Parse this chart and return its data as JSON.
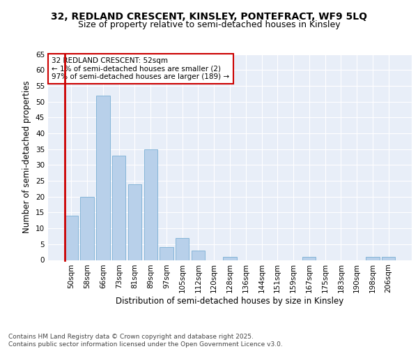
{
  "title_line1": "32, REDLAND CRESCENT, KINSLEY, PONTEFRACT, WF9 5LQ",
  "title_line2": "Size of property relative to semi-detached houses in Kinsley",
  "xlabel": "Distribution of semi-detached houses by size in Kinsley",
  "ylabel": "Number of semi-detached properties",
  "categories": [
    "50sqm",
    "58sqm",
    "66sqm",
    "73sqm",
    "81sqm",
    "89sqm",
    "97sqm",
    "105sqm",
    "112sqm",
    "120sqm",
    "128sqm",
    "136sqm",
    "144sqm",
    "151sqm",
    "159sqm",
    "167sqm",
    "175sqm",
    "183sqm",
    "190sqm",
    "198sqm",
    "206sqm"
  ],
  "values": [
    14,
    20,
    52,
    33,
    24,
    35,
    4,
    7,
    3,
    0,
    1,
    0,
    0,
    0,
    0,
    1,
    0,
    0,
    0,
    1,
    1
  ],
  "bar_color": "#b8d0ea",
  "bar_edge_color": "#7aafd4",
  "highlight_color": "#cc0000",
  "annotation_text": "32 REDLAND CRESCENT: 52sqm\n← 1% of semi-detached houses are smaller (2)\n97% of semi-detached houses are larger (189) →",
  "annotation_box_color": "#cc0000",
  "ylim": [
    0,
    65
  ],
  "yticks": [
    0,
    5,
    10,
    15,
    20,
    25,
    30,
    35,
    40,
    45,
    50,
    55,
    60,
    65
  ],
  "background_color": "#e8eef8",
  "grid_color": "#ffffff",
  "footer_text": "Contains HM Land Registry data © Crown copyright and database right 2025.\nContains public sector information licensed under the Open Government Licence v3.0.",
  "title_fontsize": 10,
  "subtitle_fontsize": 9,
  "axis_label_fontsize": 8.5,
  "tick_fontsize": 7.5,
  "annotation_fontsize": 7.5,
  "footer_fontsize": 6.5
}
